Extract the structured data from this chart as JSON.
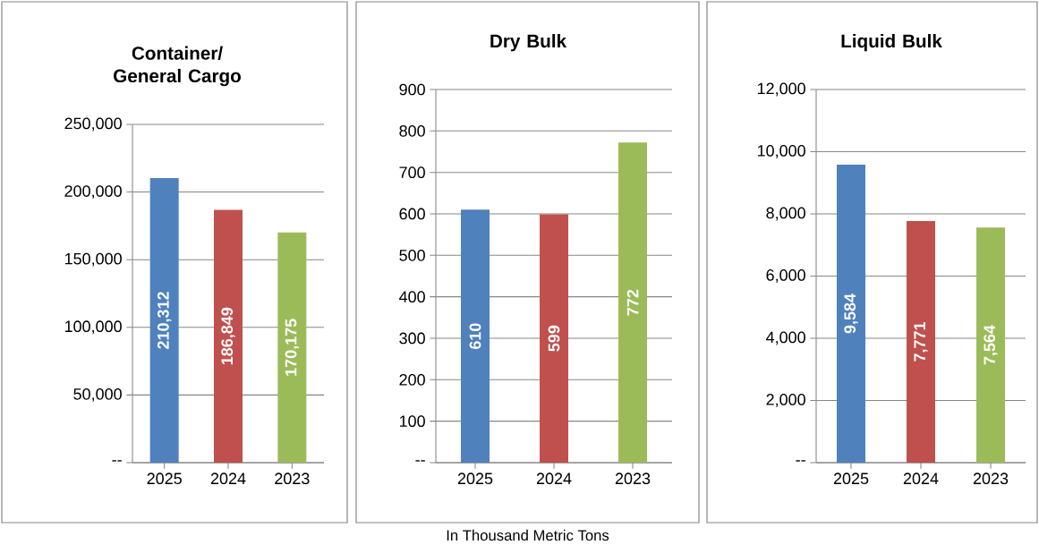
{
  "chart_data": [
    {
      "type": "bar",
      "title": "Container/ General Cargo",
      "categories": [
        "2025",
        "2024",
        "2023"
      ],
      "values": [
        210312,
        186849,
        170175
      ],
      "colors": [
        "#4f81bd",
        "#c0504d",
        "#9bbb59"
      ],
      "value_labels": [
        "210,312",
        "186,849",
        "170,175"
      ],
      "ylim": [
        0,
        250000
      ],
      "yticks": [
        {
          "value": 0,
          "label": "--"
        },
        {
          "value": 50000,
          "label": "50,000"
        },
        {
          "value": 100000,
          "label": "100,000"
        },
        {
          "value": 150000,
          "label": "150,000"
        },
        {
          "value": 200000,
          "label": "200,000"
        },
        {
          "value": 250000,
          "label": "250,000"
        }
      ],
      "grid": "y"
    },
    {
      "type": "bar",
      "title": "Dry Bulk",
      "categories": [
        "2025",
        "2024",
        "2023"
      ],
      "values": [
        610,
        599,
        772
      ],
      "colors": [
        "#4f81bd",
        "#c0504d",
        "#9bbb59"
      ],
      "value_labels": [
        "610",
        "599",
        "772"
      ],
      "ylim": [
        0,
        900
      ],
      "yticks": [
        {
          "value": 0,
          "label": "--"
        },
        100,
        200,
        300,
        400,
        500,
        600,
        700,
        800,
        900
      ],
      "grid": "y",
      "annotations": [
        "In Thousand Metric Tons"
      ]
    },
    {
      "type": "bar",
      "title": "Liquid Bulk",
      "categories": [
        "2025",
        "2024",
        "2023"
      ],
      "values": [
        9584,
        7771,
        7564
      ],
      "colors": [
        "#4f81bd",
        "#c0504d",
        "#9bbb59"
      ],
      "value_labels": [
        "9,584",
        "7,771",
        "7,564"
      ],
      "ylim": [
        0,
        12000
      ],
      "yticks": [
        {
          "value": 0,
          "label": "--"
        },
        {
          "value": 2000,
          "label": "2,000"
        },
        {
          "value": 4000,
          "label": "4,000"
        },
        {
          "value": 6000,
          "label": "6,000"
        },
        {
          "value": 8000,
          "label": "8,000"
        },
        {
          "value": 10000,
          "label": "10,000"
        },
        {
          "value": 12000,
          "label": "12,000"
        }
      ],
      "grid": "y"
    }
  ]
}
